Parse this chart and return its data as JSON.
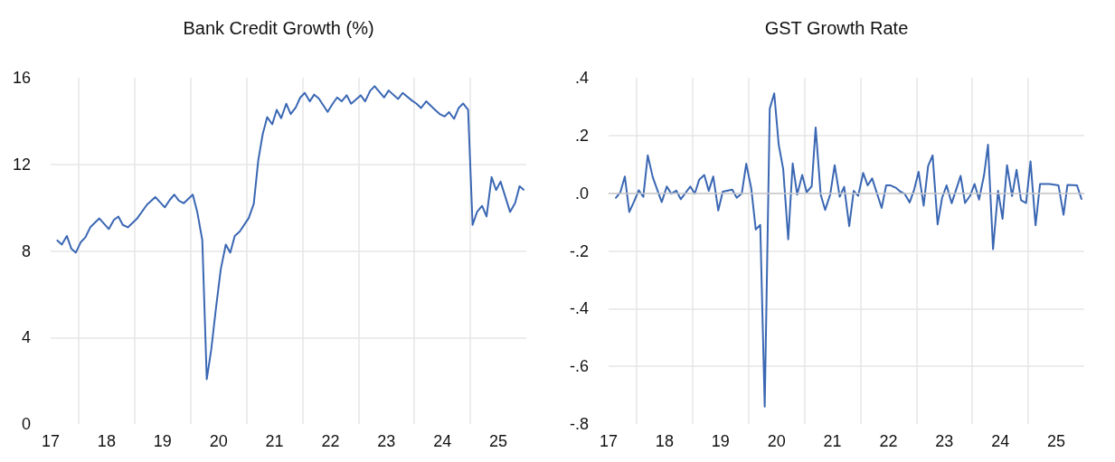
{
  "chart_data": [
    {
      "type": "line",
      "title": "Bank Credit Growth (%)",
      "xlim": [
        17,
        25.5
      ],
      "xticks": [
        17,
        {
          "value": 17.5,
          "label": null
        },
        18,
        {
          "value": 18.5,
          "label": null
        },
        19,
        {
          "value": 19.5,
          "label": null
        },
        20,
        {
          "value": 20.5,
          "label": null
        },
        21,
        {
          "value": 21.5,
          "label": null
        },
        22,
        {
          "value": 22.5,
          "label": null
        },
        23,
        {
          "value": 23.5,
          "label": null
        },
        24,
        {
          "value": 24.5,
          "label": null
        },
        25
      ],
      "ylim": [
        0,
        16
      ],
      "yticks": [
        0,
        4,
        8,
        12,
        16
      ],
      "grid": true,
      "marker": "none",
      "line_style": "solid",
      "series": [
        {
          "color": "#3a67b3",
          "x": [
            17.12,
            17.2,
            17.29,
            17.37,
            17.45,
            17.54,
            17.62,
            17.71,
            17.87,
            18.04,
            18.13,
            18.21,
            18.29,
            18.38,
            18.54,
            18.72,
            18.87,
            19.04,
            19.13,
            19.21,
            19.29,
            19.38,
            19.54,
            19.62,
            19.71,
            19.79,
            19.87,
            19.95,
            20.04,
            20.13,
            20.21,
            20.29,
            20.38,
            20.54,
            20.63,
            20.71,
            20.79,
            20.87,
            20.96,
            21.04,
            21.12,
            21.21,
            21.29,
            21.38,
            21.46,
            21.54,
            21.63,
            21.71,
            21.79,
            21.95,
            22.04,
            22.12,
            22.2,
            22.29,
            22.37,
            22.54,
            22.62,
            22.71,
            22.79,
            22.96,
            23.04,
            23.21,
            23.29,
            23.46,
            23.54,
            23.62,
            23.71,
            23.87,
            23.96,
            24.04,
            24.12,
            24.21,
            24.29,
            24.37,
            24.46,
            24.54,
            24.62,
            24.71,
            24.79,
            24.88,
            24.96,
            25.04,
            25.21,
            25.3,
            25.38,
            25.45
          ],
          "values": [
            8.48,
            8.29,
            8.69,
            8.1,
            7.92,
            8.41,
            8.62,
            9.1,
            9.5,
            9.01,
            9.43,
            9.59,
            9.2,
            9.09,
            9.48,
            10.13,
            10.49,
            10.01,
            10.36,
            10.6,
            10.32,
            10.2,
            10.6,
            9.8,
            8.5,
            2.07,
            3.44,
            5.26,
            7.15,
            8.29,
            7.92,
            8.69,
            8.9,
            9.52,
            10.18,
            12.18,
            13.4,
            14.18,
            13.85,
            14.52,
            14.13,
            14.8,
            14.32,
            14.63,
            15.08,
            15.3,
            14.91,
            15.22,
            15.05,
            14.42,
            14.8,
            15.09,
            14.91,
            15.19,
            14.8,
            15.19,
            14.91,
            15.4,
            15.61,
            15.09,
            15.41,
            15.02,
            15.3,
            14.94,
            14.8,
            14.6,
            14.91,
            14.52,
            14.31,
            14.21,
            14.41,
            14.1,
            14.6,
            14.81,
            14.52,
            9.2,
            9.8,
            10.08,
            9.59,
            11.41,
            10.81,
            11.2,
            9.8,
            10.21,
            10.99,
            10.83
          ]
        }
      ]
    },
    {
      "type": "line",
      "title": "GST Growth Rate",
      "xlim": [
        17,
        25.5
      ],
      "xticks": [
        17,
        {
          "value": 17.5,
          "label": null
        },
        18,
        {
          "value": 18.5,
          "label": null
        },
        19,
        {
          "value": 19.5,
          "label": null
        },
        20,
        {
          "value": 20.5,
          "label": null
        },
        21,
        {
          "value": 21.5,
          "label": null
        },
        22,
        {
          "value": 22.5,
          "label": null
        },
        23,
        {
          "value": 23.5,
          "label": null
        },
        24,
        {
          "value": 24.5,
          "label": null
        },
        25
      ],
      "ylim": [
        -0.8,
        0.4
      ],
      "yticks": [
        {
          "value": -0.8,
          "label": "-.8"
        },
        {
          "value": -0.6,
          "label": "-.6"
        },
        {
          "value": -0.4,
          "label": "-.4"
        },
        {
          "value": -0.2,
          "label": "-.2"
        },
        {
          "value": 0,
          "label": ".0"
        },
        {
          "value": 0.2,
          "label": ".2"
        },
        {
          "value": 0.4,
          "label": ".4"
        }
      ],
      "grid": true,
      "marker": "none",
      "line_style": "solid",
      "ref_lines": [
        {
          "axis": "y",
          "value": 0,
          "color": "#c8c8c8"
        }
      ],
      "series": [
        {
          "color": "#3a67b3",
          "x": [
            17.13,
            17.21,
            17.29,
            17.37,
            17.45,
            17.54,
            17.62,
            17.7,
            17.79,
            17.95,
            18.04,
            18.12,
            18.21,
            18.29,
            18.46,
            18.54,
            18.62,
            18.71,
            18.79,
            18.87,
            18.96,
            19.04,
            19.21,
            19.29,
            19.38,
            19.46,
            19.55,
            19.63,
            19.71,
            19.79,
            19.88,
            19.96,
            20.04,
            20.12,
            20.21,
            20.29,
            20.37,
            20.46,
            20.54,
            20.63,
            20.7,
            20.79,
            20.87,
            20.96,
            21.04,
            21.13,
            21.21,
            21.3,
            21.38,
            21.46,
            21.55,
            21.63,
            21.71,
            21.88,
            21.96,
            22.04,
            22.13,
            22.21,
            22.29,
            22.38,
            22.46,
            22.54,
            22.63,
            22.71,
            22.79,
            22.88,
            22.96,
            23.04,
            23.13,
            23.21,
            23.29,
            23.37,
            23.46,
            23.54,
            23.62,
            23.71,
            23.78,
            23.87,
            23.96,
            24.04,
            24.12,
            24.21,
            24.29,
            24.37,
            24.46,
            24.54,
            24.63,
            24.71,
            24.88,
            25.04,
            25.13,
            25.2,
            25.37,
            25.45
          ],
          "values": [
            -0.016,
            0.003,
            0.058,
            -0.065,
            -0.031,
            0.01,
            -0.013,
            0.131,
            0.055,
            -0.031,
            0.023,
            -0.002,
            0.009,
            -0.021,
            0.023,
            -0.002,
            0.047,
            0.063,
            0.008,
            0.058,
            -0.06,
            0.005,
            0.012,
            -0.016,
            -0.001,
            0.102,
            0.016,
            -0.126,
            -0.11,
            -0.74,
            0.293,
            0.346,
            0.168,
            0.084,
            -0.16,
            0.103,
            -0.005,
            0.063,
            0.003,
            0.024,
            0.228,
            -0.005,
            -0.058,
            -0.005,
            0.097,
            -0.012,
            0.022,
            -0.114,
            0.008,
            -0.009,
            0.07,
            0.027,
            0.051,
            -0.051,
            0.027,
            0.027,
            0.019,
            0.006,
            -0.002,
            -0.032,
            0.012,
            0.074,
            -0.043,
            0.094,
            0.131,
            -0.108,
            -0.016,
            0.027,
            -0.035,
            0.012,
            0.06,
            -0.034,
            -0.009,
            0.032,
            -0.022,
            0.063,
            0.168,
            -0.194,
            0.008,
            -0.089,
            0.097,
            -0.01,
            0.081,
            -0.024,
            -0.034,
            0.11,
            -0.111,
            0.032,
            0.032,
            0.027,
            -0.075,
            0.029,
            0.027,
            -0.02
          ]
        }
      ]
    }
  ]
}
